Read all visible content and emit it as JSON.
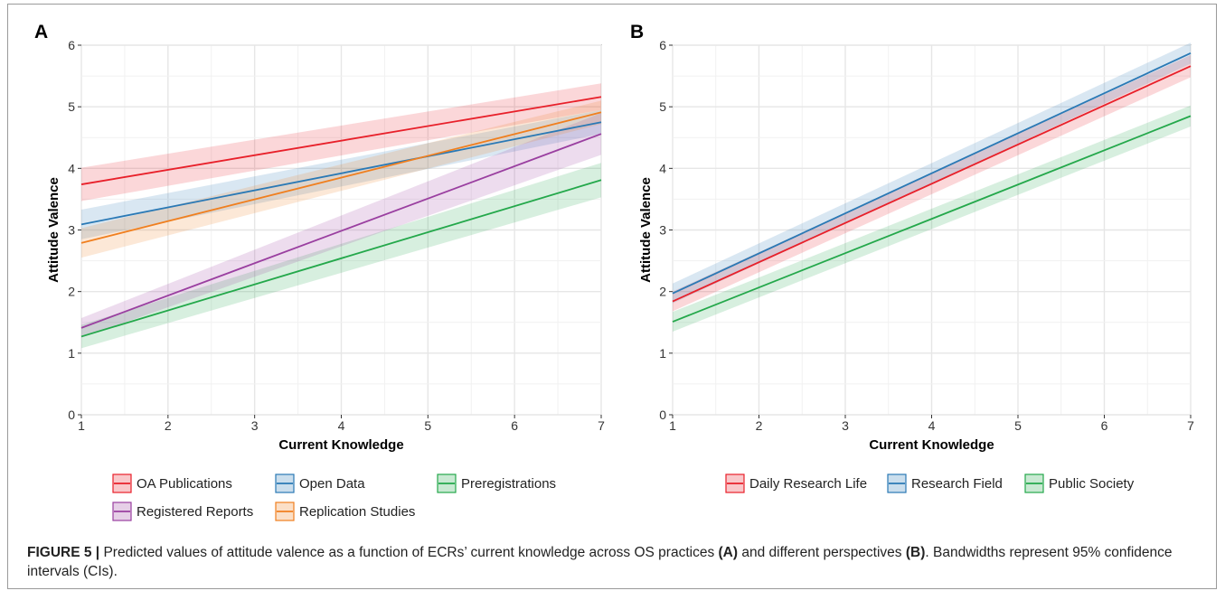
{
  "caption": {
    "prefix": "FIGURE 5 |",
    "text1": " Predicted values of attitude valence as a function of ECRs’ current knowledge across OS practices ",
    "ref_a": "(A)",
    "text2": " and different perspectives ",
    "ref_b": "(B)",
    "text3": ". Bandwidths represent 95% confidence intervals (CIs)."
  },
  "chart_data": [
    {
      "panel": "A",
      "type": "line",
      "xlabel": "Current Knowledge",
      "ylabel": "Attitude Valence",
      "xlim": [
        1,
        7
      ],
      "ylim": [
        0,
        6
      ],
      "xticks": [
        1,
        2,
        3,
        4,
        5,
        6,
        7
      ],
      "yticks": [
        0,
        1,
        2,
        3,
        4,
        5,
        6
      ],
      "grid": true,
      "legend_position": "bottom",
      "series": [
        {
          "name": "OA Publications",
          "color": "#e8202a",
          "x": [
            1,
            7
          ],
          "y": [
            3.74,
            5.16
          ],
          "ci_low": [
            3.47,
            4.95
          ],
          "ci_high": [
            4.01,
            5.38
          ]
        },
        {
          "name": "Open Data",
          "color": "#2a79b5",
          "x": [
            1,
            7
          ],
          "y": [
            3.09,
            4.75
          ],
          "ci_low": [
            2.85,
            4.56
          ],
          "ci_high": [
            3.33,
            4.95
          ]
        },
        {
          "name": "Preregistrations",
          "color": "#24a84b",
          "x": [
            1,
            7
          ],
          "y": [
            1.27,
            3.81
          ],
          "ci_low": [
            1.08,
            3.53
          ],
          "ci_high": [
            1.46,
            4.09
          ]
        },
        {
          "name": "Registered Reports",
          "color": "#9a3fa0",
          "x": [
            1,
            7
          ],
          "y": [
            1.41,
            4.56
          ],
          "ci_low": [
            1.25,
            4.22
          ],
          "ci_high": [
            1.57,
            4.9
          ]
        },
        {
          "name": "Replication Studies",
          "color": "#f07f1f",
          "x": [
            1,
            7
          ],
          "y": [
            2.79,
            4.91
          ],
          "ci_low": [
            2.55,
            4.72
          ],
          "ci_high": [
            3.03,
            5.1
          ]
        }
      ]
    },
    {
      "panel": "B",
      "type": "line",
      "xlabel": "Current Knowledge",
      "ylabel": "Attitude Valence",
      "xlim": [
        1,
        7
      ],
      "ylim": [
        0,
        6
      ],
      "xticks": [
        1,
        2,
        3,
        4,
        5,
        6,
        7
      ],
      "yticks": [
        0,
        1,
        2,
        3,
        4,
        5,
        6
      ],
      "grid": true,
      "legend_position": "bottom",
      "series": [
        {
          "name": "Daily Research Life",
          "color": "#e8202a",
          "x": [
            1,
            7
          ],
          "y": [
            1.84,
            5.66
          ],
          "ci_low": [
            1.68,
            5.48
          ],
          "ci_high": [
            2.0,
            5.84
          ]
        },
        {
          "name": "Research Field",
          "color": "#2a79b5",
          "x": [
            1,
            7
          ],
          "y": [
            1.97,
            5.87
          ],
          "ci_low": [
            1.81,
            5.7
          ],
          "ci_high": [
            2.13,
            6.04
          ]
        },
        {
          "name": "Public Society",
          "color": "#24a84b",
          "x": [
            1,
            7
          ],
          "y": [
            1.51,
            4.85
          ],
          "ci_low": [
            1.35,
            4.68
          ],
          "ci_high": [
            1.67,
            5.02
          ]
        }
      ]
    }
  ]
}
